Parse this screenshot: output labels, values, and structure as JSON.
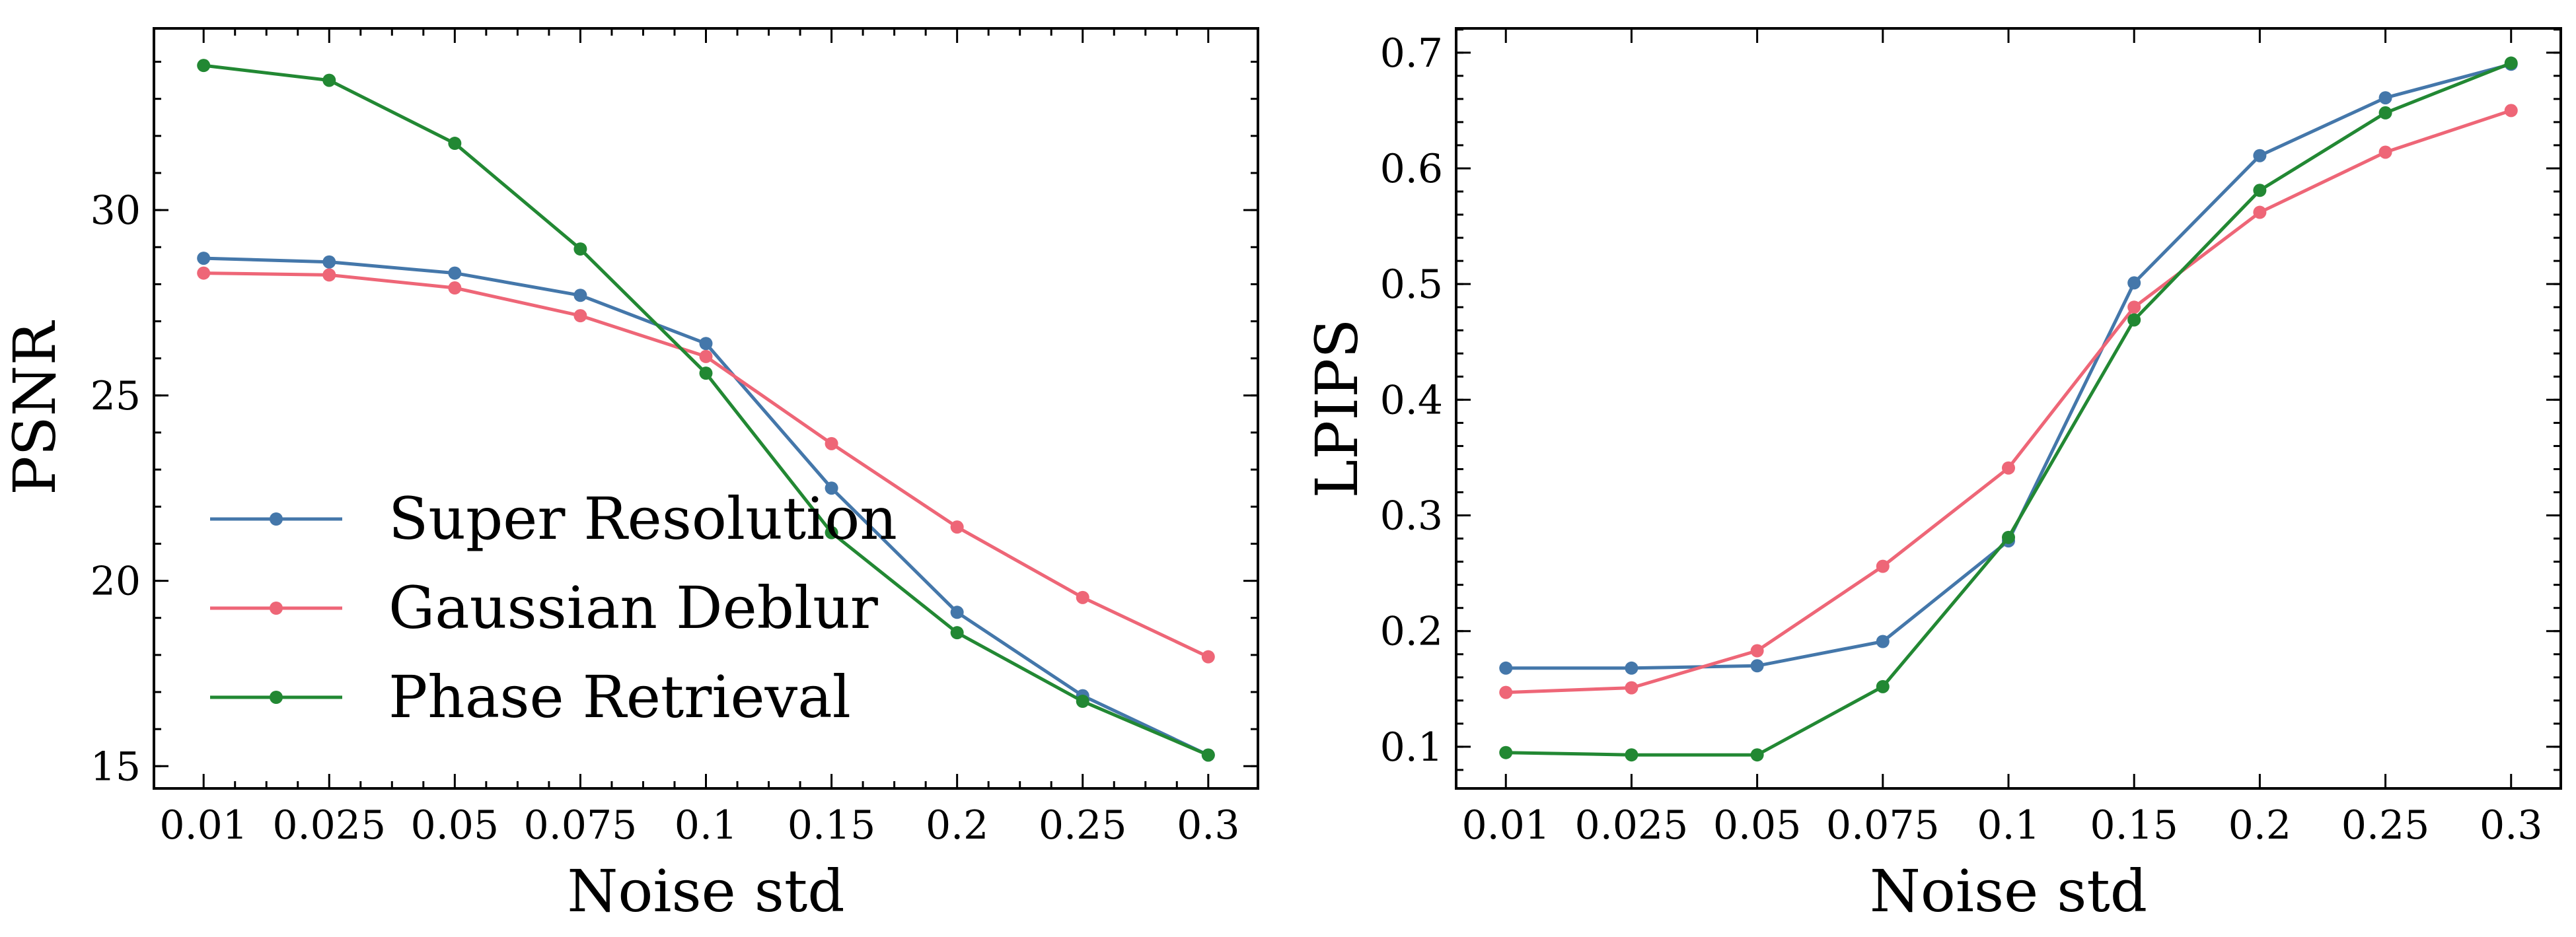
{
  "chart_data": [
    {
      "type": "line",
      "x": [
        "0.01",
        "0.025",
        "0.05",
        "0.075",
        "0.1",
        "0.15",
        "0.2",
        "0.25",
        "0.3"
      ],
      "xlabel": "Noise std",
      "ylabel": "PSNR",
      "ylim": [
        14.4,
        34.9
      ],
      "yticks": [
        "15",
        "20",
        "25",
        "30"
      ],
      "ytick_values": [
        15,
        20,
        25,
        30
      ],
      "yminor_step": 1,
      "legend_position": "lower-left",
      "grid": false,
      "series": [
        {
          "name": "Super Resolution",
          "color": "#4477aa",
          "values": [
            28.7,
            28.6,
            28.3,
            27.7,
            26.4,
            22.5,
            19.15,
            16.9,
            15.3
          ]
        },
        {
          "name": "Gaussian Deblur",
          "color": "#ee6677",
          "values": [
            28.3,
            28.25,
            27.9,
            27.15,
            26.05,
            23.7,
            21.45,
            19.55,
            17.95
          ]
        },
        {
          "name": "Phase Retrieval",
          "color": "#228833",
          "values": [
            33.9,
            33.5,
            31.8,
            28.95,
            25.6,
            21.3,
            18.6,
            16.75,
            15.3
          ]
        }
      ]
    },
    {
      "type": "line",
      "x": [
        "0.01",
        "0.025",
        "0.05",
        "0.075",
        "0.1",
        "0.15",
        "0.2",
        "0.25",
        "0.3"
      ],
      "xlabel": "Noise std",
      "ylabel": "LPIPS",
      "ylim": [
        0.064,
        0.721
      ],
      "yticks": [
        "0.1",
        "0.2",
        "0.3",
        "0.4",
        "0.5",
        "0.6",
        "0.7"
      ],
      "ytick_values": [
        0.1,
        0.2,
        0.3,
        0.4,
        0.5,
        0.6,
        0.7
      ],
      "yminor_step": 0.02,
      "grid": false,
      "series": [
        {
          "name": "Super Resolution",
          "color": "#4477aa",
          "values": [
            0.168,
            0.168,
            0.17,
            0.191,
            0.278,
            0.501,
            0.611,
            0.661,
            0.69
          ]
        },
        {
          "name": "Gaussian Deblur",
          "color": "#ee6677",
          "values": [
            0.147,
            0.151,
            0.183,
            0.256,
            0.341,
            0.48,
            0.562,
            0.614,
            0.65
          ]
        },
        {
          "name": "Phase Retrieval",
          "color": "#228833",
          "values": [
            0.095,
            0.093,
            0.093,
            0.152,
            0.281,
            0.469,
            0.581,
            0.648,
            0.691
          ]
        }
      ]
    }
  ]
}
